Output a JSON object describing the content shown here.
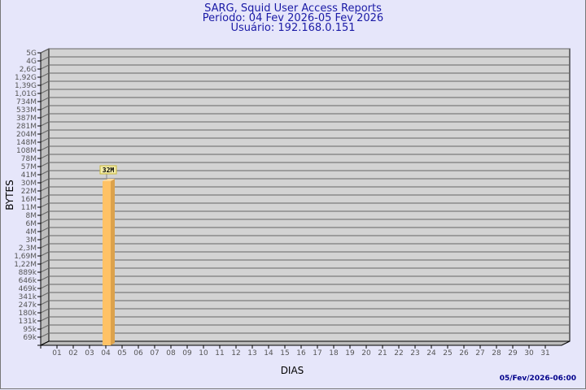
{
  "chart_data": {
    "type": "bar",
    "title": "SARG, Squid User Access Reports",
    "subtitle": [
      "Período: 04 Fev 2026-05 Fev 2026",
      "Usuário: 192.168.0.151"
    ],
    "xlabel": "DIAS",
    "ylabel": "BYTES",
    "y_scale": "log",
    "y_ticks": [
      "5G",
      "4G",
      "2,6G",
      "1,92G",
      "1,39G",
      "1,01G",
      "734M",
      "533M",
      "387M",
      "281M",
      "204M",
      "148M",
      "108M",
      "78M",
      "57M",
      "41M",
      "30M",
      "22M",
      "16M",
      "11M",
      "8M",
      "6M",
      "4M",
      "3M",
      "2,3M",
      "1,69M",
      "1,22M",
      "889k",
      "646k",
      "469k",
      "341k",
      "247k",
      "180k",
      "131k",
      "95k",
      "69k"
    ],
    "categories": [
      "01",
      "02",
      "03",
      "04",
      "05",
      "06",
      "07",
      "08",
      "09",
      "10",
      "11",
      "12",
      "13",
      "14",
      "15",
      "16",
      "17",
      "18",
      "19",
      "20",
      "21",
      "22",
      "23",
      "24",
      "25",
      "26",
      "27",
      "28",
      "29",
      "30",
      "31"
    ],
    "bars": [
      {
        "category": "04",
        "value": 32000000,
        "label": "32M"
      }
    ],
    "grid": true,
    "colors": {
      "bar_front": "#ffc266",
      "bar_side": "#dca24c",
      "wall": "#d3d3d3",
      "background": "#e6e6fa",
      "title": "#1a1aa6"
    }
  },
  "timestamp": "05/Fev/2026-06:00"
}
